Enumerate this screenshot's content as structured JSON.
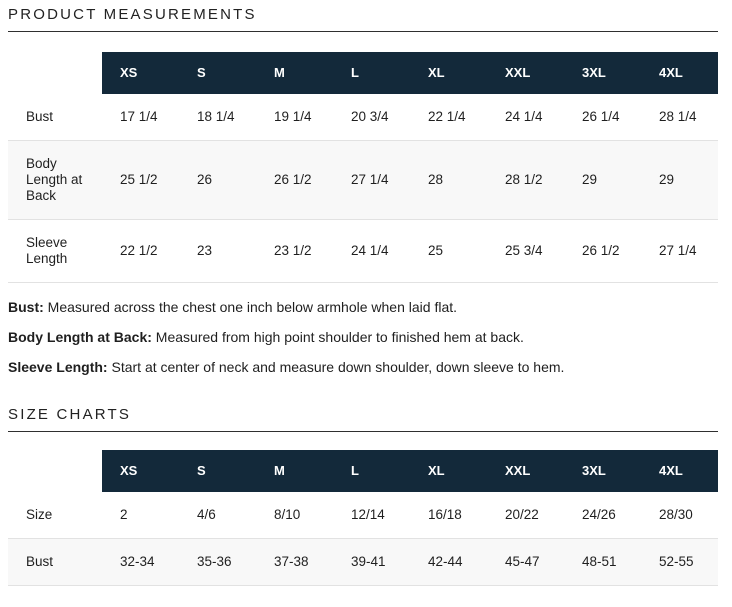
{
  "colors": {
    "header_bg": "#13293a",
    "header_text": "#ffffff"
  },
  "product_measurements": {
    "heading": "PRODUCT MEASUREMENTS",
    "table": {
      "columns": [
        "XS",
        "S",
        "M",
        "L",
        "XL",
        "XXL",
        "3XL",
        "4XL"
      ],
      "rows": [
        {
          "label": "Bust",
          "values": [
            "17 1/4",
            "18 1/4",
            "19 1/4",
            "20 3/4",
            "22 1/4",
            "24 1/4",
            "26 1/4",
            "28 1/4"
          ]
        },
        {
          "label": "Body Length at Back",
          "values": [
            "25 1/2",
            "26",
            "26 1/2",
            "27 1/4",
            "28",
            "28 1/2",
            "29",
            "29"
          ]
        },
        {
          "label": "Sleeve Length",
          "values": [
            "22 1/2",
            "23",
            "23 1/2",
            "24 1/4",
            "25",
            "25 3/4",
            "26 1/2",
            "27 1/4"
          ]
        }
      ]
    },
    "notes": [
      {
        "term": "Bust:",
        "description": " Measured across the chest one inch below armhole when laid flat."
      },
      {
        "term": "Body Length at Back:",
        "description": " Measured from high point shoulder to finished hem at back."
      },
      {
        "term": "Sleeve Length:",
        "description": " Start at center of neck and measure down shoulder, down sleeve to hem."
      }
    ]
  },
  "size_charts": {
    "heading": "SIZE CHARTS",
    "table": {
      "columns": [
        "XS",
        "S",
        "M",
        "L",
        "XL",
        "XXL",
        "3XL",
        "4XL"
      ],
      "rows": [
        {
          "label": "Size",
          "values": [
            "2",
            "4/6",
            "8/10",
            "12/14",
            "16/18",
            "20/22",
            "24/26",
            "28/30"
          ]
        },
        {
          "label": "Bust",
          "values": [
            "32-34",
            "35-36",
            "37-38",
            "39-41",
            "42-44",
            "45-47",
            "48-51",
            "52-55"
          ]
        }
      ]
    }
  }
}
